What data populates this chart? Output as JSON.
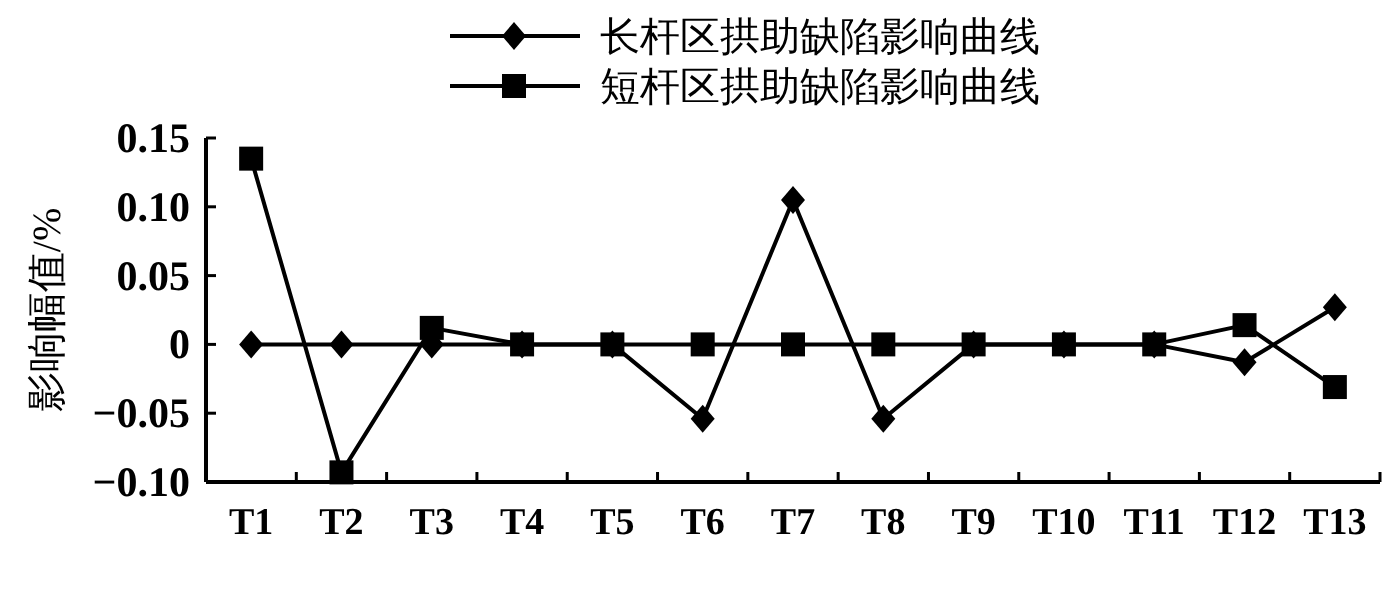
{
  "chart_data": {
    "type": "line",
    "ylabel": "影响幅值/%",
    "categories": [
      "T1",
      "T2",
      "T3",
      "T4",
      "T5",
      "T6",
      "T7",
      "T8",
      "T9",
      "T10",
      "T11",
      "T12",
      "T13"
    ],
    "series": [
      {
        "name": "长杆区拱助缺陷影响曲线",
        "color": "#000000",
        "marker": "diamond",
        "values": [
          0,
          0,
          0,
          0,
          0,
          -0.054,
          0.105,
          -0.054,
          0,
          0,
          0,
          -0.013,
          0.027
        ]
      },
      {
        "name": "短杆区拱助缺陷影响曲线",
        "color": "#000000",
        "marker": "square",
        "values": [
          0.135,
          -0.093,
          0.012,
          0,
          0,
          0,
          0,
          0,
          0,
          0,
          0,
          0.014,
          -0.031
        ]
      }
    ],
    "ylim": [
      -0.1,
      0.15
    ],
    "yticks": [
      {
        "value": -0.1,
        "label": "−0.10"
      },
      {
        "value": -0.05,
        "label": "−0.05"
      },
      {
        "value": 0,
        "label": "0"
      },
      {
        "value": 0.05,
        "label": "0.05"
      },
      {
        "value": 0.1,
        "label": "0.10"
      },
      {
        "value": 0.15,
        "label": "0.15"
      }
    ],
    "grid": false,
    "legend": "top",
    "line_style": "solid"
  }
}
